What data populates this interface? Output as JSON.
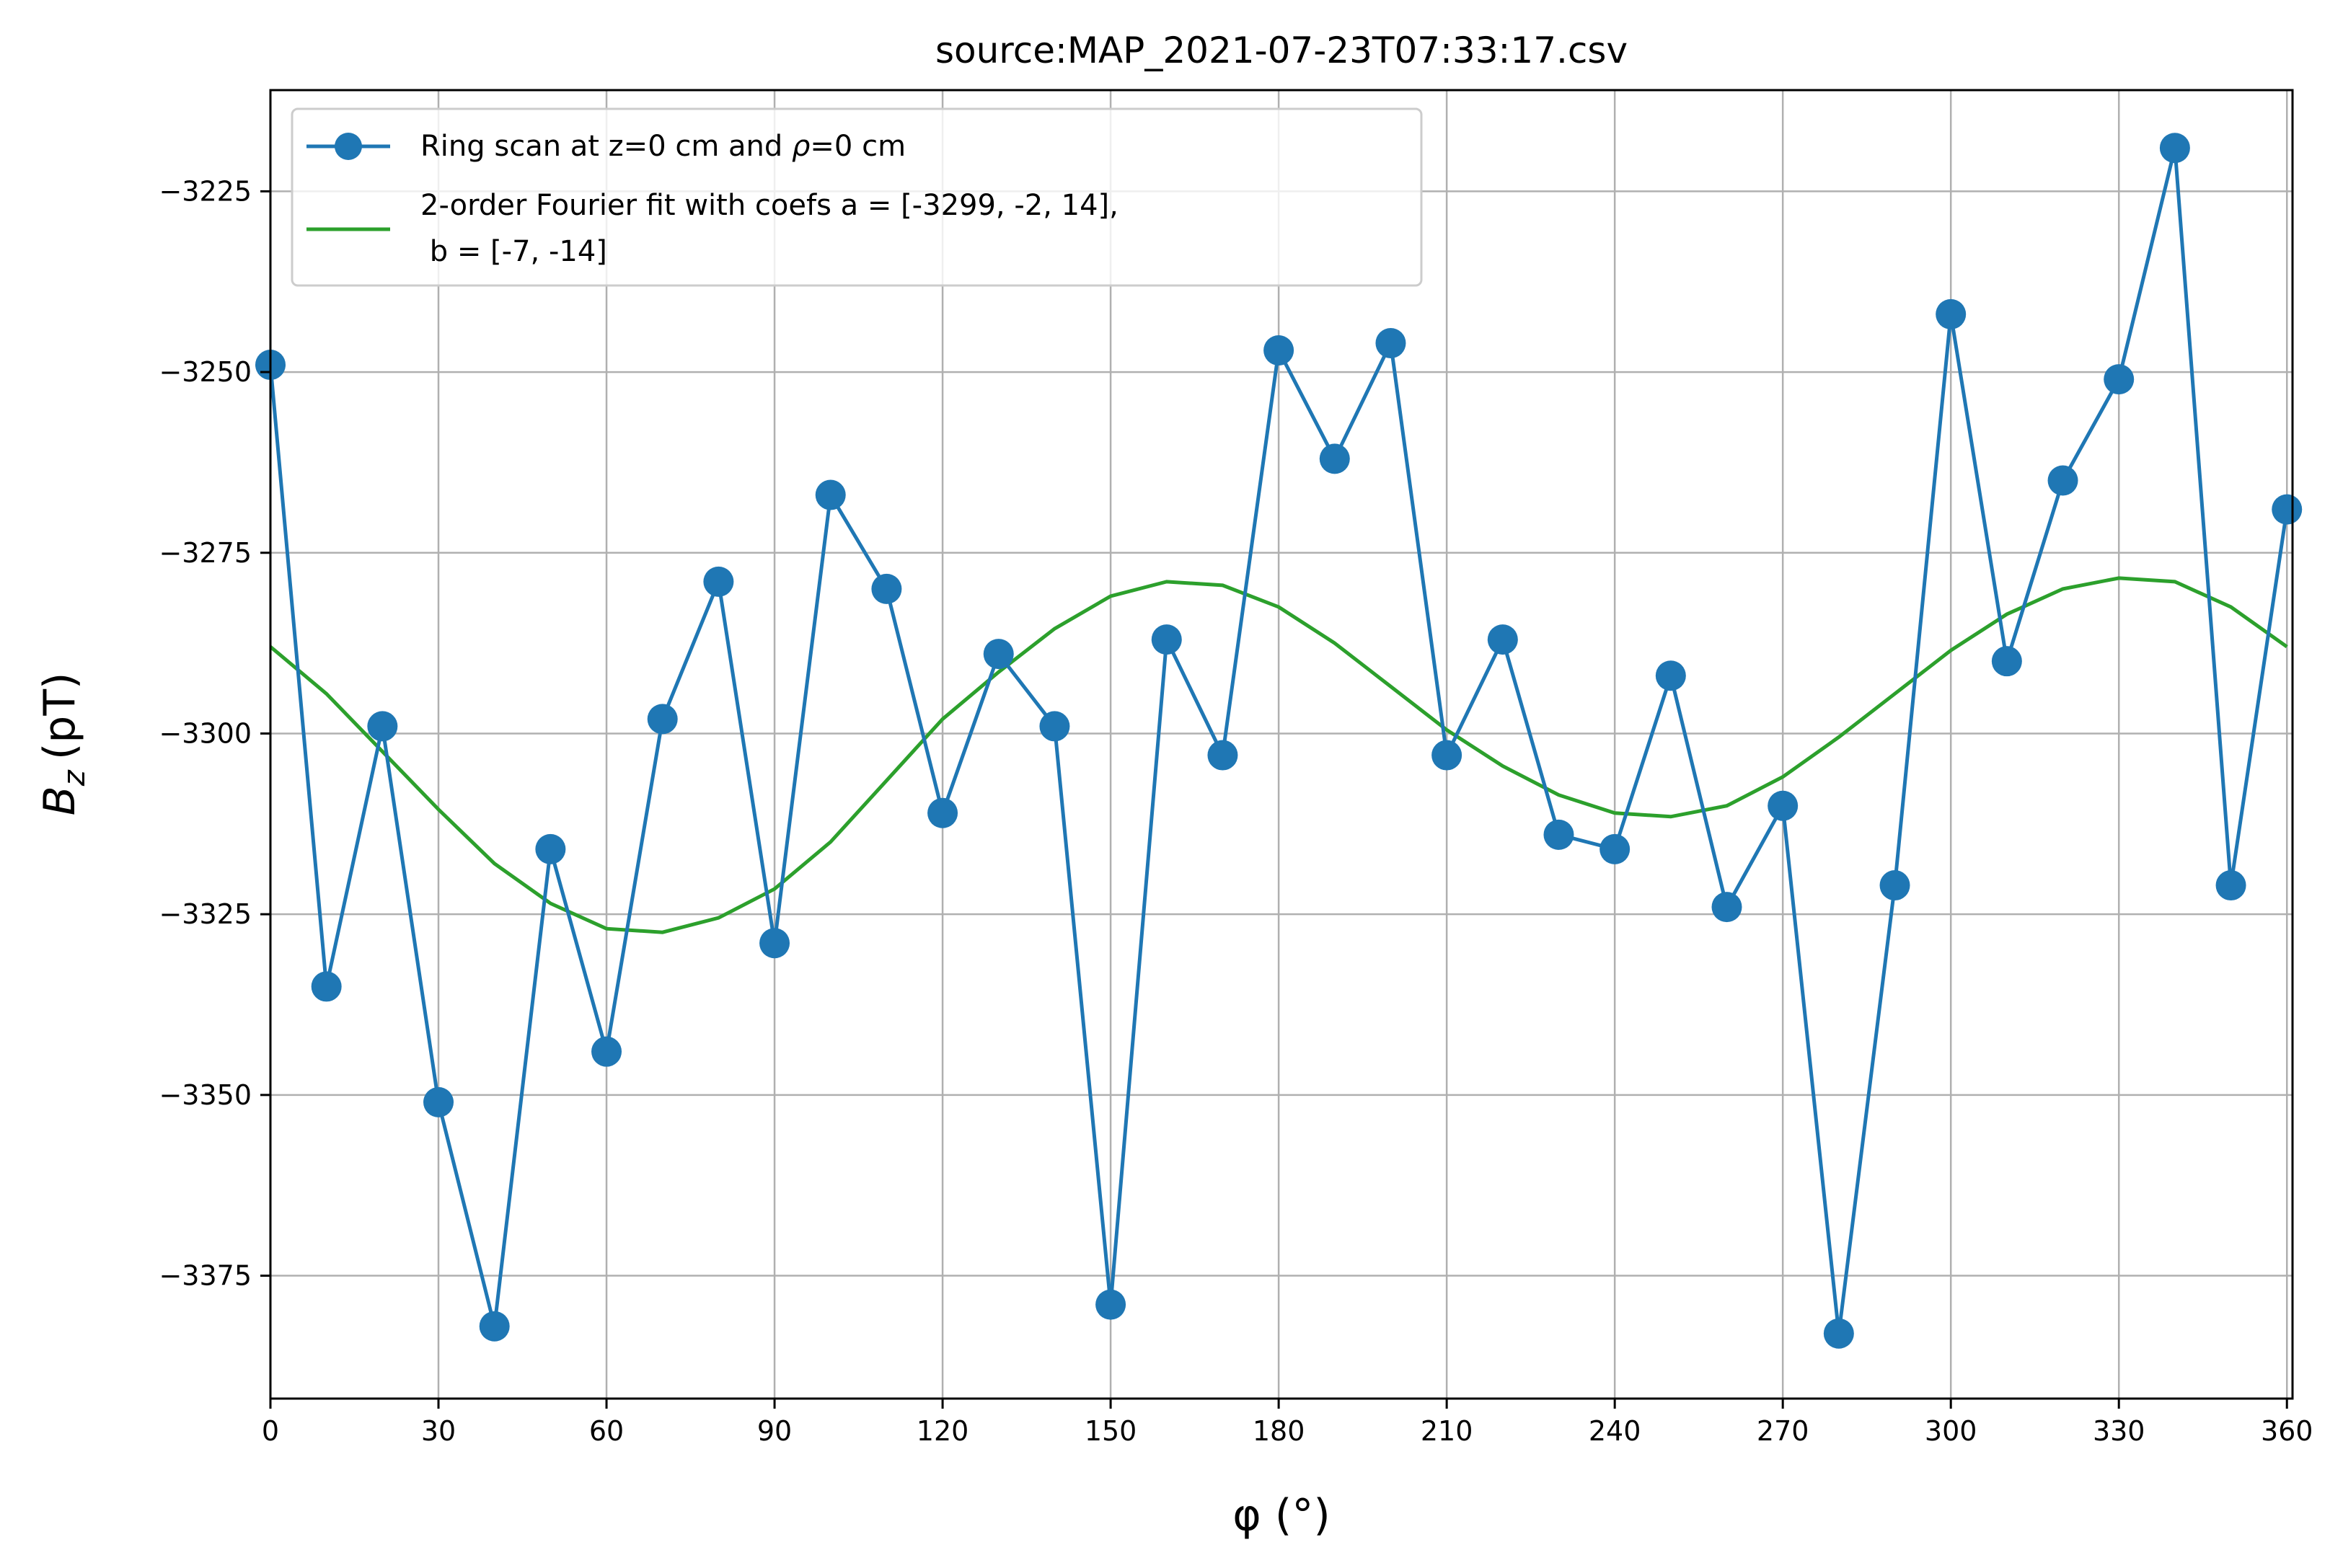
{
  "chart_data": {
    "type": "line",
    "title": "source:MAP_2021-07-23T07:33:17.csv",
    "xlabel": "φ (°)",
    "ylabel_main": "B",
    "ylabel_sub": "z",
    "ylabel_unit": "(pT)",
    "xlim": [
      0,
      361
    ],
    "ylim": [
      -3392,
      -3211
    ],
    "xticks": [
      0,
      30,
      60,
      90,
      120,
      150,
      180,
      210,
      240,
      270,
      300,
      330,
      360
    ],
    "yticks": [
      -3375,
      -3350,
      -3325,
      -3300,
      -3275,
      -3250,
      -3225
    ],
    "ytick_labels": [
      "−3375",
      "−3350",
      "−3325",
      "−3300",
      "−3275",
      "−3250",
      "−3225"
    ],
    "grid": true,
    "legend_position": "upper-left",
    "series": [
      {
        "name_prefix": "Ring scan at z=0 cm and ",
        "name_symbol": "ρ",
        "name_suffix": "=0 cm",
        "color": "#1f77b4",
        "marker": "circle",
        "x": [
          0,
          10,
          20,
          30,
          40,
          50,
          60,
          70,
          80,
          90,
          100,
          110,
          120,
          130,
          140,
          150,
          160,
          170,
          180,
          190,
          200,
          210,
          220,
          230,
          240,
          250,
          260,
          270,
          280,
          290,
          300,
          310,
          320,
          330,
          340,
          350,
          360
        ],
        "y": [
          -3249,
          -3335,
          -3299,
          -3351,
          -3382,
          -3316,
          -3344,
          -3298,
          -3279,
          -3329,
          -3267,
          -3280,
          -3311,
          -3289,
          -3299,
          -3379,
          -3287,
          -3303,
          -3247,
          -3262,
          -3246,
          -3303,
          -3287,
          -3314,
          -3316,
          -3292,
          -3324,
          -3310,
          -3383,
          -3321,
          -3242,
          -3290,
          -3265,
          -3251,
          -3219,
          -3321,
          -3269
        ]
      },
      {
        "name_line1": "2-order Fourier fit with coefs a = [-3299, -2, 14],",
        "name_line2": " b = [-7, -14]",
        "color": "#2ca02c",
        "marker": "none",
        "x": [
          0,
          10,
          20,
          30,
          40,
          50,
          60,
          70,
          80,
          90,
          100,
          110,
          120,
          130,
          140,
          150,
          160,
          170,
          180,
          190,
          200,
          210,
          220,
          230,
          240,
          250,
          260,
          270,
          280,
          290,
          300,
          310,
          320,
          330,
          340,
          350,
          360
        ],
        "y": [
          -3288,
          -3294.5,
          -3302.5,
          -3310.5,
          -3318,
          -3323.5,
          -3327,
          -3327.5,
          -3325.5,
          -3321.5,
          -3315,
          -3306.5,
          -3298,
          -3291.5,
          -3285.5,
          -3281,
          -3279,
          -3279.5,
          -3282.5,
          -3287.5,
          -3293.5,
          -3299.5,
          -3304.5,
          -3308.5,
          -3311,
          -3311.5,
          -3310,
          -3306,
          -3300.5,
          -3294.5,
          -3288.5,
          -3283.5,
          -3280,
          -3278.5,
          -3279,
          -3282.5,
          -3288
        ]
      }
    ]
  }
}
